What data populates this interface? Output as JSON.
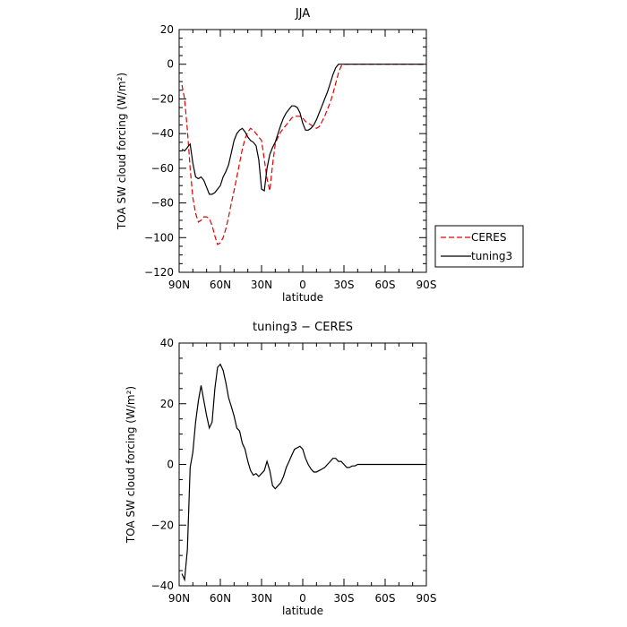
{
  "chart_data": [
    {
      "type": "line",
      "title": "JJA",
      "xlabel": "latitude",
      "ylabel": "TOA SW cloud forcing (W/m²)",
      "xlim": [
        90,
        -90
      ],
      "ylim": [
        -120,
        20
      ],
      "xticks": [
        90,
        60,
        30,
        0,
        -30,
        -60,
        -90
      ],
      "xtick_labels": [
        "90N",
        "60N",
        "30N",
        "0",
        "30S",
        "60S",
        "90S"
      ],
      "yticks": [
        20,
        0,
        -20,
        -40,
        -60,
        -80,
        -100,
        -120
      ],
      "ytick_labels": [
        "20",
        "0",
        "−20",
        "−40",
        "−60",
        "−80",
        "−100",
        "−120"
      ],
      "legend": "right",
      "series": [
        {
          "name": "CERES",
          "color": "#e00000",
          "dash": "dashed",
          "x": [
            88,
            86,
            84,
            82,
            80,
            78,
            76,
            74,
            72,
            70,
            68,
            66,
            64,
            62,
            60,
            58,
            56,
            54,
            52,
            50,
            48,
            46,
            44,
            42,
            40,
            38,
            36,
            34,
            32,
            30,
            28,
            26,
            24,
            22,
            20,
            18,
            16,
            14,
            12,
            10,
            8,
            6,
            4,
            2,
            0,
            -2,
            -4,
            -6,
            -8,
            -10,
            -12,
            -14,
            -16,
            -18,
            -20,
            -22,
            -24,
            -26,
            -28,
            -30,
            -32,
            -34,
            -36,
            -38,
            -40,
            -42,
            -44,
            -46,
            -48,
            -50,
            -52,
            -54,
            -56,
            -58,
            -60,
            -62,
            -64,
            -66,
            -68,
            -70,
            -72,
            -74,
            -76,
            -78,
            -80,
            -82,
            -84,
            -86,
            -88
          ],
          "y": [
            -12,
            -20,
            -38,
            -60,
            -77,
            -86,
            -91,
            -90,
            -88,
            -88,
            -89,
            -93,
            -99,
            -104,
            -103,
            -100,
            -95,
            -88,
            -80,
            -73,
            -65,
            -57,
            -49,
            -43,
            -39,
            -37,
            -38,
            -40,
            -42,
            -44,
            -55,
            -66,
            -73,
            -58,
            -46,
            -42,
            -39,
            -37,
            -35,
            -33,
            -31,
            -30,
            -30,
            -30,
            -31,
            -33,
            -34,
            -35,
            -36,
            -37,
            -36,
            -33,
            -30,
            -26,
            -22,
            -17,
            -11,
            -5,
            -1,
            0,
            0,
            0,
            0,
            0,
            0,
            0,
            0,
            0,
            0,
            0,
            0,
            0,
            0,
            0,
            0,
            0,
            0,
            0,
            0,
            0,
            0,
            0,
            0,
            0,
            0,
            0,
            0,
            0,
            0
          ]
        },
        {
          "name": "tuning3",
          "color": "#000000",
          "dash": "solid",
          "x": [
            88,
            86,
            84,
            82,
            80,
            78,
            76,
            74,
            72,
            70,
            68,
            66,
            64,
            62,
            60,
            58,
            56,
            54,
            52,
            50,
            48,
            46,
            44,
            42,
            40,
            38,
            36,
            34,
            32,
            30,
            28,
            26,
            24,
            22,
            20,
            18,
            16,
            14,
            12,
            10,
            8,
            6,
            4,
            2,
            0,
            -2,
            -4,
            -6,
            -8,
            -10,
            -12,
            -14,
            -16,
            -18,
            -20,
            -22,
            -24,
            -26,
            -28,
            -30,
            -32,
            -34,
            -36,
            -38,
            -40,
            -42,
            -44,
            -46,
            -48,
            -50,
            -52,
            -54,
            -56,
            -58,
            -60,
            -62,
            -64,
            -66,
            -68,
            -70,
            -72,
            -74,
            -76,
            -78,
            -80,
            -82,
            -84,
            -86,
            -88
          ],
          "y": [
            -49,
            -50,
            -48,
            -46,
            -57,
            -65,
            -66,
            -65,
            -67,
            -71,
            -75,
            -75,
            -74,
            -72,
            -70,
            -65,
            -62,
            -58,
            -51,
            -44,
            -40,
            -38,
            -37,
            -39,
            -42,
            -44,
            -45,
            -47,
            -55,
            -72,
            -73,
            -60,
            -52,
            -48,
            -45,
            -40,
            -35,
            -31,
            -28,
            -26,
            -24,
            -24,
            -25,
            -28,
            -34,
            -38,
            -38,
            -37,
            -35,
            -32,
            -28,
            -24,
            -20,
            -16,
            -11,
            -6,
            -2,
            0,
            0,
            0,
            0,
            0,
            0,
            0,
            0,
            0,
            0,
            0,
            0,
            0,
            0,
            0,
            0,
            0,
            0,
            0,
            0,
            0,
            0,
            0,
            0,
            0,
            0,
            0,
            0,
            0,
            0,
            0,
            0
          ]
        }
      ]
    },
    {
      "type": "line",
      "title": "tuning3 − CERES",
      "xlabel": "latitude",
      "ylabel": "TOA SW cloud forcing (W/m²)",
      "xlim": [
        90,
        -90
      ],
      "ylim": [
        -40,
        40
      ],
      "xticks": [
        90,
        60,
        30,
        0,
        -30,
        -60,
        -90
      ],
      "xtick_labels": [
        "90N",
        "60N",
        "30N",
        "0",
        "30S",
        "60S",
        "90S"
      ],
      "yticks": [
        40,
        20,
        0,
        -20,
        -40
      ],
      "ytick_labels": [
        "40",
        "20",
        "0",
        "−20",
        "−40"
      ],
      "series": [
        {
          "color": "#000000",
          "dash": "solid",
          "x": [
            88,
            86,
            84,
            82,
            80,
            78,
            76,
            74,
            72,
            70,
            68,
            66,
            64,
            62,
            60,
            58,
            56,
            54,
            52,
            50,
            48,
            46,
            44,
            42,
            40,
            38,
            36,
            34,
            32,
            30,
            28,
            26,
            24,
            22,
            20,
            18,
            16,
            14,
            12,
            10,
            8,
            6,
            4,
            2,
            0,
            -2,
            -4,
            -6,
            -8,
            -10,
            -12,
            -14,
            -16,
            -18,
            -20,
            -22,
            -24,
            -26,
            -28,
            -30,
            -32,
            -34,
            -36,
            -38,
            -40,
            -42,
            -44,
            -46,
            -48,
            -50,
            -52,
            -54,
            -56,
            -58,
            -60,
            -62,
            -64,
            -66,
            -68,
            -70,
            -72,
            -74,
            -76,
            -78,
            -80,
            -82,
            -84,
            -86,
            -88
          ],
          "y": [
            -36,
            -38,
            -28,
            -1,
            4,
            14,
            21,
            26,
            21,
            16,
            12,
            14,
            25,
            32,
            33,
            31,
            27,
            22,
            19,
            16,
            12,
            11,
            7,
            5,
            1,
            -2,
            -3.5,
            -3,
            -4,
            -3,
            -2,
            1,
            -2,
            -7,
            -8,
            -7,
            -6,
            -4,
            -1,
            1,
            3,
            5,
            5.5,
            6,
            5,
            2,
            0,
            -1.5,
            -2.5,
            -2.5,
            -2,
            -1.5,
            -1,
            0,
            1,
            2,
            2,
            1,
            1,
            0,
            -1,
            -1,
            -0.5,
            -0.5,
            0,
            0,
            0,
            0,
            0,
            0,
            0,
            0,
            0,
            0,
            0,
            0,
            0,
            0,
            0,
            0,
            0,
            0,
            0,
            0,
            0,
            0,
            0,
            0,
            0
          ]
        }
      ]
    }
  ]
}
